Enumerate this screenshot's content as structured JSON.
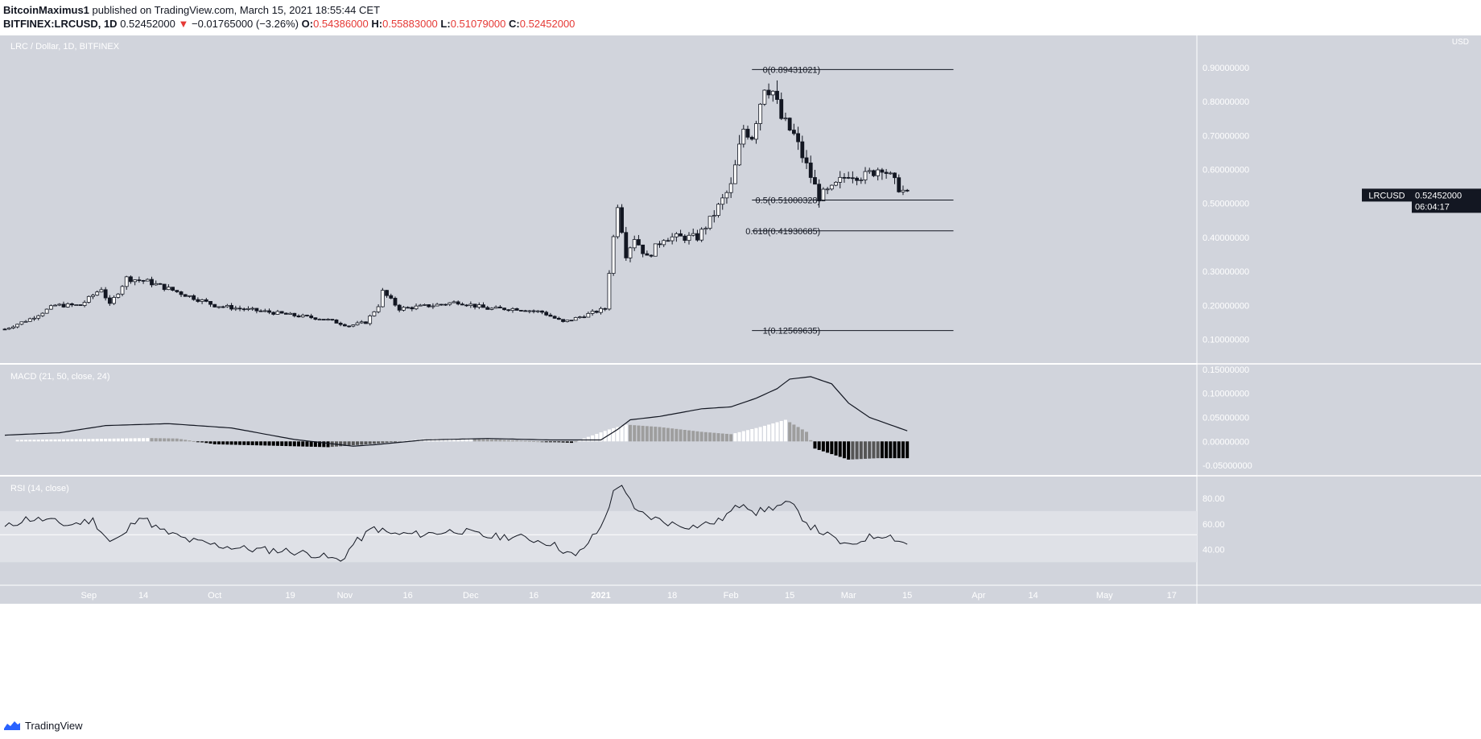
{
  "header": {
    "author": "BitcoinMaximus1",
    "published": "published on TradingView.com, March 15, 2021 18:55:44 CET",
    "symbol_line_prefix": "BITFINEX:LRCUSD, 1D",
    "last_price": "0.52452000",
    "change": "−0.01765000 (−3.26%)",
    "o_label": "O:",
    "o": "0.54386000",
    "h_label": "H:",
    "h": "0.55883000",
    "l_label": "L:",
    "l": "0.51079000",
    "c_label": "C:",
    "c": "0.52452000"
  },
  "footer": {
    "brand": "TradingView"
  },
  "colors": {
    "pane_bg": "#d1d4dc",
    "band_bg": "#dfe1e7",
    "line": "#131722",
    "hist_black": "#000000",
    "hist_gray": "#9e9e9e",
    "hist_white": "#ffffff",
    "down_arrow": "#e53935"
  },
  "chart_data": [
    {
      "type": "candlestick",
      "title": "LRC / Dollar, 1D, BITFINEX",
      "unit_label": "USD",
      "symbol_tag": "LRCUSD",
      "last_value_label": "0.52452000",
      "countdown": "06:04:17",
      "ylim": [
        0.03,
        0.99
      ],
      "y_ticks": [
        0.1,
        0.2,
        0.3,
        0.4,
        0.5,
        0.6,
        0.7,
        0.8,
        0.9
      ],
      "y_tick_labels": [
        "0.10000000",
        "0.20000000",
        "0.30000000",
        "0.40000000",
        "0.50000000",
        "0.60000000",
        "0.70000000",
        "0.80000000",
        "0.90000000"
      ],
      "x_range": [
        "2020-08-12",
        "2021-05-23"
      ],
      "x_tick_dates": [
        "2020-09-01",
        "2020-09-14",
        "2020-10-01",
        "2020-10-19",
        "2020-11-01",
        "2020-11-16",
        "2020-12-01",
        "2020-12-16",
        "2021-01-01",
        "2021-01-18",
        "2021-02-01",
        "2021-02-15",
        "2021-03-01",
        "2021-03-15",
        "2021-04-01",
        "2021-04-14",
        "2021-05-01",
        "2021-05-17"
      ],
      "x_tick_labels": [
        "Sep",
        "14",
        "Oct",
        "19",
        "Nov",
        "16",
        "Dec",
        "16",
        "2021",
        "18",
        "Feb",
        "15",
        "Mar",
        "15",
        "Apr",
        "14",
        "May",
        "17"
      ],
      "close_series": {
        "dates": [
          "2020-08-12",
          "2020-08-18",
          "2020-08-24",
          "2020-08-30",
          "2020-09-04",
          "2020-09-06",
          "2020-09-10",
          "2020-09-15",
          "2020-09-22",
          "2020-10-01",
          "2020-10-07",
          "2020-10-14",
          "2020-10-20",
          "2020-10-27",
          "2020-11-02",
          "2020-11-06",
          "2020-11-09",
          "2020-11-10",
          "2020-11-14",
          "2020-11-22",
          "2020-11-28",
          "2020-12-05",
          "2020-12-12",
          "2020-12-18",
          "2020-12-23",
          "2020-12-28",
          "2021-01-02",
          "2021-01-03",
          "2021-01-05",
          "2021-01-07",
          "2021-01-09",
          "2021-01-12",
          "2021-01-16",
          "2021-01-21",
          "2021-01-24",
          "2021-01-27",
          "2021-02-01",
          "2021-02-04",
          "2021-02-06",
          "2021-02-09",
          "2021-02-11",
          "2021-02-13",
          "2021-02-16",
          "2021-02-20",
          "2021-02-22",
          "2021-02-25",
          "2021-03-01",
          "2021-03-05",
          "2021-03-09",
          "2021-03-12",
          "2021-03-15"
        ],
        "close": [
          0.13,
          0.16,
          0.2,
          0.2,
          0.25,
          0.2,
          0.28,
          0.27,
          0.24,
          0.2,
          0.19,
          0.18,
          0.17,
          0.16,
          0.14,
          0.15,
          0.2,
          0.24,
          0.19,
          0.2,
          0.21,
          0.19,
          0.19,
          0.18,
          0.15,
          0.17,
          0.19,
          0.3,
          0.5,
          0.35,
          0.4,
          0.34,
          0.4,
          0.4,
          0.4,
          0.45,
          0.55,
          0.72,
          0.7,
          0.85,
          0.83,
          0.75,
          0.7,
          0.58,
          0.52,
          0.54,
          0.59,
          0.58,
          0.61,
          0.56,
          0.52452
        ]
      },
      "fibonacci": [
        {
          "level": "0",
          "value": 0.89431021,
          "label": "0(0.89431021)"
        },
        {
          "level": "0.5",
          "value": 0.51000328,
          "label": "0.5(0.51000328)"
        },
        {
          "level": "0.618",
          "value": 0.41930685,
          "label": "0.618(0.41930685)"
        },
        {
          "level": "1",
          "value": 0.12569635,
          "label": "1(0.12569635)"
        }
      ],
      "fib_extent": [
        "2021-02-06",
        "2021-03-26"
      ]
    },
    {
      "type": "histogram+line",
      "title": "MACD (21, 50, close, 24)",
      "ylim": [
        -0.07,
        0.16
      ],
      "y_ticks": [
        -0.05,
        0,
        0.05,
        0.1,
        0.15
      ],
      "y_tick_labels": [
        "-0.05000000",
        "0.00000000",
        "0.05000000",
        "0.10000000",
        "0.15000000"
      ],
      "macd_line": {
        "dates": [
          "2020-08-12",
          "2020-08-25",
          "2020-09-05",
          "2020-09-20",
          "2020-10-05",
          "2020-10-20",
          "2020-11-03",
          "2020-11-08",
          "2020-11-20",
          "2020-12-05",
          "2020-12-20",
          "2021-01-01",
          "2021-01-05",
          "2021-01-08",
          "2021-01-15",
          "2021-01-25",
          "2021-02-01",
          "2021-02-07",
          "2021-02-12",
          "2021-02-15",
          "2021-02-20",
          "2021-02-25",
          "2021-03-01",
          "2021-03-06",
          "2021-03-15"
        ],
        "values": [
          0.013,
          0.018,
          0.033,
          0.037,
          0.028,
          0.004,
          -0.01,
          -0.007,
          0.003,
          0.006,
          0.003,
          0.003,
          0.025,
          0.045,
          0.052,
          0.068,
          0.072,
          0.09,
          0.11,
          0.13,
          0.135,
          0.12,
          0.08,
          0.05,
          0.022
        ]
      },
      "histogram": {
        "dates": [
          "2020-08-15",
          "2020-09-01",
          "2020-09-15",
          "2020-09-22",
          "2020-10-01",
          "2020-10-15",
          "2020-10-28",
          "2020-11-08",
          "2020-11-20",
          "2020-12-01",
          "2020-12-15",
          "2020-12-25",
          "2021-01-03",
          "2021-01-07",
          "2021-01-15",
          "2021-01-25",
          "2021-02-01",
          "2021-02-08",
          "2021-02-14",
          "2021-02-19",
          "2021-02-21",
          "2021-03-01",
          "2021-03-08",
          "2021-03-15"
        ],
        "values": [
          0.003,
          0.005,
          0.007,
          0.006,
          -0.006,
          -0.009,
          -0.012,
          -0.005,
          0.005,
          0.006,
          0.001,
          -0.003,
          0.025,
          0.035,
          0.03,
          0.02,
          0.015,
          0.03,
          0.045,
          0.02,
          -0.015,
          -0.038,
          -0.035,
          -0.035
        ]
      }
    },
    {
      "type": "line",
      "title": "RSI (14, close)",
      "ylim": [
        12,
        97
      ],
      "band": [
        30,
        70
      ],
      "midline": 51.5,
      "y_ticks": [
        40,
        60,
        80
      ],
      "y_tick_labels": [
        "40.00",
        "60.00",
        "80.00"
      ],
      "dates": [
        "2020-08-12",
        "2020-08-17",
        "2020-08-22",
        "2020-08-27",
        "2020-09-02",
        "2020-09-06",
        "2020-09-09",
        "2020-09-13",
        "2020-09-18",
        "2020-09-25",
        "2020-10-02",
        "2020-10-10",
        "2020-10-18",
        "2020-10-25",
        "2020-10-31",
        "2020-11-03",
        "2020-11-08",
        "2020-11-12",
        "2020-11-20",
        "2020-11-28",
        "2020-12-05",
        "2020-12-12",
        "2020-12-20",
        "2020-12-26",
        "2021-01-01",
        "2021-01-04",
        "2021-01-06",
        "2021-01-09",
        "2021-01-13",
        "2021-01-18",
        "2021-01-23",
        "2021-01-29",
        "2021-02-04",
        "2021-02-07",
        "2021-02-11",
        "2021-02-15",
        "2021-02-20",
        "2021-02-23",
        "2021-03-01",
        "2021-03-05",
        "2021-03-10",
        "2021-03-15"
      ],
      "values": [
        57,
        64,
        63,
        59,
        63,
        46,
        50,
        67,
        55,
        47,
        43,
        40,
        39,
        36,
        31,
        44,
        57,
        52,
        52,
        55,
        50,
        50,
        45,
        34,
        57,
        84,
        92,
        70,
        65,
        60,
        58,
        62,
        77,
        69,
        73,
        76,
        58,
        53,
        42,
        49,
        52,
        44
      ]
    }
  ]
}
